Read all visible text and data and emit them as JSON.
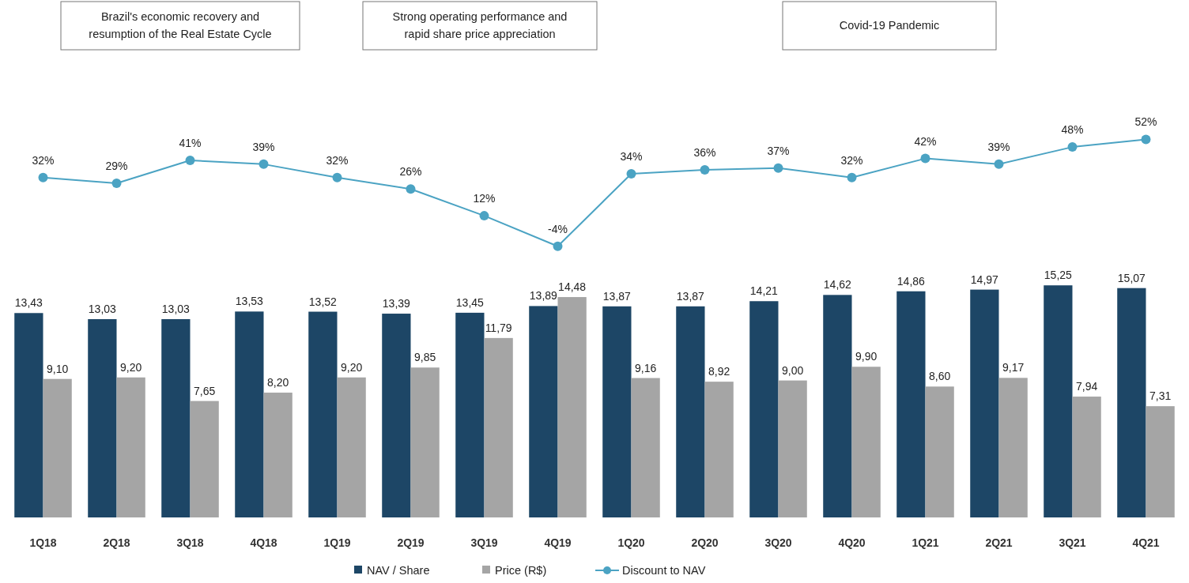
{
  "chart_data": {
    "type": "bar",
    "categories": [
      "1Q18",
      "2Q18",
      "3Q18",
      "4Q18",
      "1Q19",
      "2Q19",
      "3Q19",
      "4Q19",
      "1Q20",
      "2Q20",
      "3Q20",
      "4Q20",
      "1Q21",
      "2Q21",
      "3Q21",
      "4Q21"
    ],
    "series": [
      {
        "name": "NAV / Share",
        "color": "#1d4666",
        "values": [
          13.43,
          13.03,
          13.03,
          13.53,
          13.52,
          13.39,
          13.45,
          13.89,
          13.87,
          13.87,
          14.21,
          14.62,
          14.86,
          14.97,
          15.25,
          15.07
        ],
        "value_labels": [
          "13,43",
          "13,03",
          "13,03",
          "13,53",
          "13,52",
          "13,39",
          "13,45",
          "13,89",
          "13,87",
          "13,87",
          "14,21",
          "14,62",
          "14,86",
          "14,97",
          "15,25",
          "15,07"
        ]
      },
      {
        "name": "Price (R$)",
        "color": "#a5a5a5",
        "values": [
          9.1,
          9.2,
          7.65,
          8.2,
          9.2,
          9.85,
          11.79,
          14.48,
          9.16,
          8.92,
          9.0,
          9.9,
          8.6,
          9.17,
          7.94,
          7.31
        ],
        "value_labels": [
          "9,10",
          "9,20",
          "7,65",
          "8,20",
          "9,20",
          "9,85",
          "11,79",
          "14,48",
          "9,16",
          "8,92",
          "9,00",
          "9,90",
          "8,60",
          "9,17",
          "7,94",
          "7,31"
        ]
      },
      {
        "name": "Discount to NAV",
        "type": "line",
        "axis": "y2",
        "color": "#4ba3c3",
        "marker": "circle",
        "values": [
          32,
          29,
          41,
          39,
          32,
          26,
          12,
          -4,
          34,
          36,
          37,
          32,
          42,
          39,
          48,
          52
        ],
        "value_labels": [
          "32%",
          "29%",
          "41%",
          "39%",
          "32%",
          "26%",
          "12%",
          "-4%",
          "34%",
          "36%",
          "37%",
          "32%",
          "42%",
          "39%",
          "48%",
          "52%"
        ]
      }
    ],
    "ylim": [
      0,
      34
    ],
    "y2lim": [
      -146,
      125
    ],
    "tick_labels": "x",
    "legend": "bottom",
    "annotations": [
      "Brazil's economic recovery and resumption of the Real Estate Cycle",
      "Strong operating performance and rapid share price appreciation",
      "Covid-19 Pandemic"
    ]
  }
}
